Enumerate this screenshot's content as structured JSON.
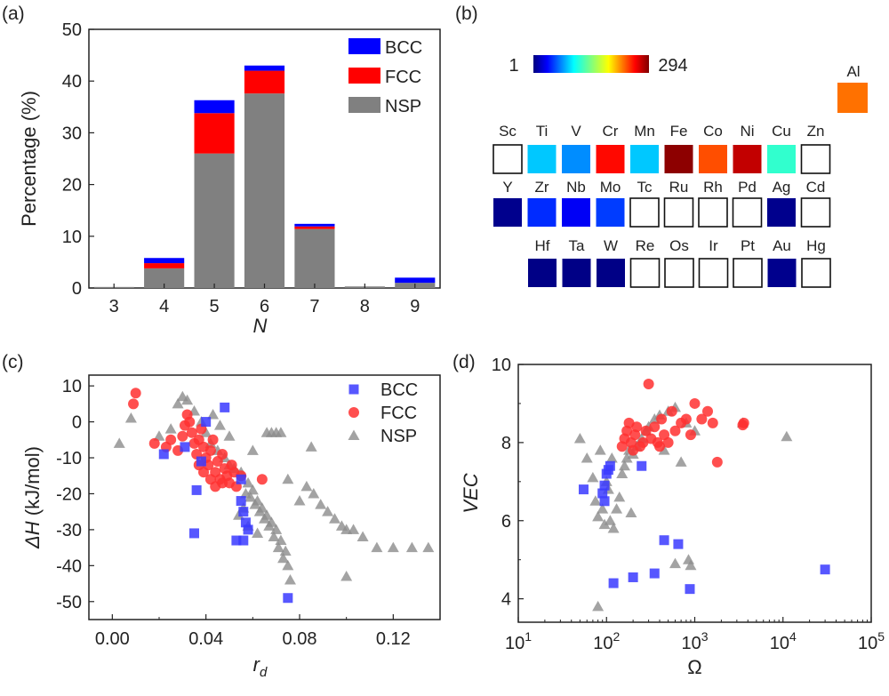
{
  "panels": {
    "a": "(a)",
    "b": "(b)",
    "c": "(c)",
    "d": "(d)"
  },
  "chart_data": [
    {
      "panel": "(a)",
      "type": "bar",
      "stacked": true,
      "categories": [
        "3",
        "4",
        "5",
        "6",
        "7",
        "8",
        "9"
      ],
      "series": [
        {
          "name": "NSP",
          "color": "#808080",
          "values": [
            0.2,
            3.8,
            26.0,
            37.6,
            11.4,
            0.3,
            1.0
          ]
        },
        {
          "name": "FCC",
          "color": "#ff0000",
          "values": [
            0.0,
            1.0,
            7.8,
            4.4,
            0.5,
            0.0,
            0.0
          ]
        },
        {
          "name": "BCC",
          "color": "#0000ff",
          "values": [
            0.0,
            1.0,
            2.5,
            1.0,
            0.5,
            0.0,
            1.0
          ]
        }
      ],
      "ylabel": "Percentage (%)",
      "xlabel": "N",
      "ylim": [
        0,
        50
      ],
      "yticks": [
        "0",
        "10",
        "20",
        "30",
        "40",
        "50"
      ],
      "legend": [
        "BCC",
        "FCC",
        "NSP"
      ],
      "legend_position": "top-right"
    },
    {
      "panel": "(b)",
      "type": "heatmap",
      "colorbar": {
        "min_label": "1",
        "max_label": "294",
        "min": 1,
        "max": 294
      },
      "rows": [
        [
          {
            "symbol": "Sc",
            "value": null
          },
          {
            "symbol": "Ti",
            "value": 95
          },
          {
            "symbol": "V",
            "value": 78
          },
          {
            "symbol": "Cr",
            "value": 255
          },
          {
            "symbol": "Mn",
            "value": 95
          },
          {
            "symbol": "Fe",
            "value": 290
          },
          {
            "symbol": "Co",
            "value": 235
          },
          {
            "symbol": "Ni",
            "value": 275
          },
          {
            "symbol": "Cu",
            "value": 125
          },
          {
            "symbol": "Zn",
            "value": null
          }
        ],
        [
          {
            "symbol": "Y",
            "value": 5
          },
          {
            "symbol": "Zr",
            "value": 50
          },
          {
            "symbol": "Nb",
            "value": 35
          },
          {
            "symbol": "Mo",
            "value": 55
          },
          {
            "symbol": "Tc",
            "value": null
          },
          {
            "symbol": "Ru",
            "value": null
          },
          {
            "symbol": "Rh",
            "value": null
          },
          {
            "symbol": "Pd",
            "value": null
          },
          {
            "symbol": "Ag",
            "value": 5
          },
          {
            "symbol": "Cd",
            "value": null
          }
        ],
        [
          {
            "symbol": "Hf",
            "value": 3
          },
          {
            "symbol": "Ta",
            "value": 3
          },
          {
            "symbol": "W",
            "value": 3
          },
          {
            "symbol": "Re",
            "value": null
          },
          {
            "symbol": "Os",
            "value": null
          },
          {
            "symbol": "Ir",
            "value": null
          },
          {
            "symbol": "Pt",
            "value": null
          },
          {
            "symbol": "Au",
            "value": 5
          },
          {
            "symbol": "Hg",
            "value": null
          }
        ]
      ],
      "extra": {
        "symbol": "Al",
        "value": 225
      }
    },
    {
      "panel": "(c)",
      "type": "scatter",
      "xlabel": "r_d",
      "ylabel": "ΔH (kJ/mol)",
      "xlim": [
        -0.01,
        0.14
      ],
      "ylim": [
        -55,
        13
      ],
      "xticks": [
        "0.00",
        "0.04",
        "0.08",
        "0.12"
      ],
      "yticks": [
        "10",
        "0",
        "-10",
        "-20",
        "-30",
        "-40",
        "-50"
      ],
      "legend": [
        "BCC",
        "FCC",
        "NSP"
      ],
      "legend_position": "top-right",
      "series": [
        {
          "name": "BCC",
          "color": "#3a3aff",
          "marker": "square",
          "points": [
            [
              0.022,
              -9
            ],
            [
              0.031,
              -7
            ],
            [
              0.038,
              -11
            ],
            [
              0.036,
              -19
            ],
            [
              0.04,
              0
            ],
            [
              0.048,
              4
            ],
            [
              0.035,
              -31
            ],
            [
              0.055,
              -16
            ],
            [
              0.055,
              -22
            ],
            [
              0.056,
              -25
            ],
            [
              0.057,
              -28
            ],
            [
              0.058,
              -30
            ],
            [
              0.053,
              -33
            ],
            [
              0.056,
              -33
            ],
            [
              0.075,
              -49
            ]
          ]
        },
        {
          "name": "FCC",
          "color": "#ff3030",
          "marker": "circle",
          "points": [
            [
              0.01,
              8
            ],
            [
              0.009,
              5
            ],
            [
              0.018,
              -6
            ],
            [
              0.023,
              -7
            ],
            [
              0.025,
              -5
            ],
            [
              0.028,
              -8
            ],
            [
              0.03,
              -4
            ],
            [
              0.031,
              -1
            ],
            [
              0.032,
              2
            ],
            [
              0.033,
              0
            ],
            [
              0.034,
              -3
            ],
            [
              0.035,
              -6
            ],
            [
              0.036,
              -9
            ],
            [
              0.037,
              -5
            ],
            [
              0.038,
              -2
            ],
            [
              0.039,
              -7
            ],
            [
              0.04,
              -10
            ],
            [
              0.041,
              -12
            ],
            [
              0.042,
              -8
            ],
            [
              0.043,
              -5
            ],
            [
              0.044,
              -14
            ],
            [
              0.045,
              -11
            ],
            [
              0.046,
              -16
            ],
            [
              0.047,
              -9
            ],
            [
              0.048,
              -13
            ],
            [
              0.049,
              -15
            ],
            [
              0.05,
              -17
            ],
            [
              0.051,
              -12
            ],
            [
              0.052,
              -14
            ],
            [
              0.053,
              -18
            ],
            [
              0.047,
              -17
            ],
            [
              0.044,
              -18
            ],
            [
              0.042,
              -16
            ],
            [
              0.039,
              -14
            ],
            [
              0.037,
              -12
            ],
            [
              0.055,
              -15
            ],
            [
              0.064,
              -16
            ]
          ]
        },
        {
          "name": "NSP",
          "color": "#8c8c8c",
          "marker": "triangle",
          "points": [
            [
              0.003,
              -6
            ],
            [
              0.008,
              1
            ],
            [
              0.02,
              -4
            ],
            [
              0.025,
              -2
            ],
            [
              0.028,
              5
            ],
            [
              0.03,
              7
            ],
            [
              0.032,
              6
            ],
            [
              0.035,
              3
            ],
            [
              0.038,
              0
            ],
            [
              0.04,
              -3
            ],
            [
              0.042,
              -6
            ],
            [
              0.045,
              -8
            ],
            [
              0.048,
              -10
            ],
            [
              0.05,
              -12
            ],
            [
              0.052,
              -13
            ],
            [
              0.055,
              -14
            ],
            [
              0.058,
              -17
            ],
            [
              0.06,
              -19
            ],
            [
              0.062,
              -22
            ],
            [
              0.064,
              -24
            ],
            [
              0.066,
              -26
            ],
            [
              0.068,
              -28
            ],
            [
              0.07,
              -30
            ],
            [
              0.072,
              -33
            ],
            [
              0.074,
              -36
            ],
            [
              0.075,
              -40
            ],
            [
              0.076,
              -44
            ],
            [
              0.073,
              -38
            ],
            [
              0.071,
              -35
            ],
            [
              0.069,
              -32
            ],
            [
              0.067,
              -29
            ],
            [
              0.065,
              -27
            ],
            [
              0.063,
              -25
            ],
            [
              0.061,
              -23
            ],
            [
              0.059,
              -21
            ],
            [
              0.057,
              -20
            ],
            [
              0.056,
              -24
            ],
            [
              0.054,
              -26
            ],
            [
              0.058,
              -29
            ],
            [
              0.062,
              -31
            ],
            [
              0.066,
              -3
            ],
            [
              0.068,
              -3
            ],
            [
              0.07,
              -3
            ],
            [
              0.072,
              -3
            ],
            [
              0.075,
              -16
            ],
            [
              0.08,
              -22
            ],
            [
              0.083,
              -18
            ],
            [
              0.086,
              -20
            ],
            [
              0.089,
              -23
            ],
            [
              0.092,
              -25
            ],
            [
              0.095,
              -27
            ],
            [
              0.098,
              -29
            ],
            [
              0.1,
              -30
            ],
            [
              0.103,
              -30
            ],
            [
              0.107,
              -32
            ],
            [
              0.113,
              -35
            ],
            [
              0.12,
              -35
            ],
            [
              0.128,
              -35
            ],
            [
              0.135,
              -35
            ],
            [
              0.1,
              -43
            ],
            [
              0.085,
              -7
            ],
            [
              0.06,
              -8
            ],
            [
              0.05,
              -4
            ],
            [
              0.046,
              -1
            ],
            [
              0.043,
              2
            ]
          ]
        }
      ]
    },
    {
      "panel": "(d)",
      "type": "scatter",
      "xscale": "log",
      "xlabel": "Ω",
      "ylabel": "VEC",
      "xlim": [
        10,
        100000
      ],
      "ylim": [
        3.4,
        10
      ],
      "xticks": [
        "10^1",
        "10^2",
        "10^3",
        "10^4",
        "10^5"
      ],
      "yticks": [
        "4",
        "6",
        "8",
        "10"
      ],
      "series": [
        {
          "name": "BCC",
          "color": "#3a3aff",
          "marker": "square",
          "points": [
            [
              55,
              6.8
            ],
            [
              90,
              6.7
            ],
            [
              95,
              6.5
            ],
            [
              100,
              7.2
            ],
            [
              105,
              7.3
            ],
            [
              110,
              7.4
            ],
            [
              95,
              6.9
            ],
            [
              120,
              4.4
            ],
            [
              200,
              4.55
            ],
            [
              350,
              4.65
            ],
            [
              450,
              5.5
            ],
            [
              650,
              5.4
            ],
            [
              880,
              4.25
            ],
            [
              250,
              7.4
            ],
            [
              30000,
              4.75
            ]
          ]
        },
        {
          "name": "FCC",
          "color": "#ff3030",
          "marker": "circle",
          "points": [
            [
              150,
              7.9
            ],
            [
              160,
              8.1
            ],
            [
              170,
              8.3
            ],
            [
              180,
              8.5
            ],
            [
              190,
              8.0
            ],
            [
              200,
              7.8
            ],
            [
              210,
              8.2
            ],
            [
              220,
              8.4
            ],
            [
              240,
              7.9
            ],
            [
              260,
              8.0
            ],
            [
              280,
              8.3
            ],
            [
              300,
              9.5
            ],
            [
              320,
              8.1
            ],
            [
              350,
              8.4
            ],
            [
              380,
              8.0
            ],
            [
              400,
              7.9
            ],
            [
              420,
              8.6
            ],
            [
              450,
              8.2
            ],
            [
              500,
              8.0
            ],
            [
              550,
              8.8
            ],
            [
              600,
              8.3
            ],
            [
              700,
              8.5
            ],
            [
              800,
              8.6
            ],
            [
              900,
              8.2
            ],
            [
              1000,
              9.0
            ],
            [
              1200,
              8.6
            ],
            [
              1400,
              8.8
            ],
            [
              1600,
              8.5
            ],
            [
              1800,
              7.5
            ],
            [
              3500,
              8.45
            ],
            [
              3600,
              8.5
            ]
          ]
        },
        {
          "name": "NSP",
          "color": "#8c8c8c",
          "marker": "triangle",
          "points": [
            [
              50,
              8.1
            ],
            [
              60,
              7.6
            ],
            [
              70,
              7.1
            ],
            [
              75,
              6.5
            ],
            [
              80,
              6.1
            ],
            [
              85,
              7.8
            ],
            [
              90,
              6.3
            ],
            [
              95,
              5.9
            ],
            [
              100,
              7.0
            ],
            [
              105,
              6.8
            ],
            [
              110,
              6.0
            ],
            [
              115,
              7.6
            ],
            [
              120,
              5.8
            ],
            [
              130,
              6.3
            ],
            [
              140,
              6.6
            ],
            [
              150,
              7.2
            ],
            [
              160,
              7.4
            ],
            [
              170,
              7.6
            ],
            [
              180,
              7.8
            ],
            [
              190,
              6.2
            ],
            [
              200,
              7.7
            ],
            [
              220,
              7.9
            ],
            [
              250,
              8.1
            ],
            [
              280,
              8.3
            ],
            [
              300,
              8.4
            ],
            [
              350,
              8.6
            ],
            [
              400,
              8.7
            ],
            [
              500,
              8.8
            ],
            [
              600,
              8.9
            ],
            [
              800,
              8.5
            ],
            [
              1000,
              8.3
            ],
            [
              3500,
              8.5
            ],
            [
              11000,
              8.15
            ],
            [
              600,
              4.9
            ],
            [
              900,
              4.85
            ],
            [
              850,
              5.0
            ],
            [
              80,
              3.8
            ],
            [
              450,
              7.8
            ],
            [
              700,
              7.5
            ]
          ]
        }
      ]
    }
  ]
}
